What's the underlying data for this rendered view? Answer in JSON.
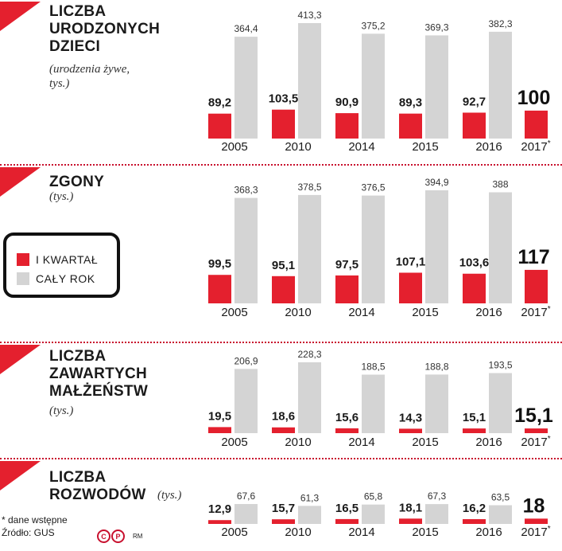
{
  "colors": {
    "q1": "#e4202e",
    "year": "#d4d4d4",
    "accent": "#c8102e"
  },
  "legend": {
    "q1_label": "I KWARTAŁ",
    "year_label": "CAŁY ROK"
  },
  "footnote": "* dane wstępne",
  "source": "Źródło: GUS",
  "logo": {
    "c": "C",
    "p": "P",
    "rm": "RM"
  },
  "years": [
    "2005",
    "2010",
    "2014",
    "2015",
    "2016",
    "2017*"
  ],
  "panels": [
    {
      "title_lines": [
        "LICZBA",
        "URODZONYCH",
        "DZIECI"
      ],
      "subtitle_lines": [
        "(urodzenia żywe,",
        "tys.)"
      ]
    },
    {
      "title_lines": [
        "ZGONY"
      ],
      "subtitle_lines": [
        "(tys.)"
      ]
    },
    {
      "title_lines": [
        "LICZBA",
        "ZAWARTYCH",
        "MAŁŻEŃSTW"
      ],
      "subtitle_lines": [
        "(tys.)"
      ]
    },
    {
      "title_lines": [
        "LICZBA",
        "ROZWODÓW"
      ],
      "subtitle_lines": [
        "(tys.)"
      ]
    }
  ],
  "chart_data": [
    {
      "type": "bar",
      "title": "LICZBA URODZONYCH DZIECI (urodzenia żywe, tys.)",
      "categories": [
        "2005",
        "2010",
        "2014",
        "2015",
        "2016",
        "2017*"
      ],
      "series": [
        {
          "name": "I KWARTAŁ",
          "values": [
            89.2,
            103.5,
            90.9,
            89.3,
            92.7,
            100
          ],
          "labels": [
            "89,2",
            "103,5",
            "90,9",
            "89,3",
            "92,7",
            "100"
          ]
        },
        {
          "name": "CAŁY ROK",
          "values": [
            364.4,
            413.3,
            375.2,
            369.3,
            382.3,
            null
          ],
          "labels": [
            "364,4",
            "413,3",
            "375,2",
            "369,3",
            "382,3",
            null
          ]
        }
      ]
    },
    {
      "type": "bar",
      "title": "ZGONY (tys.)",
      "categories": [
        "2005",
        "2010",
        "2014",
        "2015",
        "2016",
        "2017*"
      ],
      "series": [
        {
          "name": "I KWARTAŁ",
          "values": [
            99.5,
            95.1,
            97.5,
            107.1,
            103.6,
            117
          ],
          "labels": [
            "99,5",
            "95,1",
            "97,5",
            "107,1",
            "103,6",
            "117"
          ]
        },
        {
          "name": "CAŁY ROK",
          "values": [
            368.3,
            378.5,
            376.5,
            394.9,
            388,
            null
          ],
          "labels": [
            "368,3",
            "378,5",
            "376,5",
            "394,9",
            "388",
            null
          ]
        }
      ]
    },
    {
      "type": "bar",
      "title": "LICZBA ZAWARTYCH MAŁŻEŃSTW (tys.)",
      "categories": [
        "2005",
        "2010",
        "2014",
        "2015",
        "2016",
        "2017*"
      ],
      "series": [
        {
          "name": "I KWARTAŁ",
          "values": [
            19.5,
            18.6,
            15.6,
            14.3,
            15.1,
            15.1
          ],
          "labels": [
            "19,5",
            "18,6",
            "15,6",
            "14,3",
            "15,1",
            "15,1"
          ]
        },
        {
          "name": "CAŁY ROK",
          "values": [
            206.9,
            228.3,
            188.5,
            188.8,
            193.5,
            null
          ],
          "labels": [
            "206,9",
            "228,3",
            "188,5",
            "188,8",
            "193,5",
            null
          ]
        }
      ]
    },
    {
      "type": "bar",
      "title": "LICZBA ROZWODÓW (tys.)",
      "categories": [
        "2005",
        "2010",
        "2014",
        "2015",
        "2016",
        "2017*"
      ],
      "series": [
        {
          "name": "I KWARTAŁ",
          "values": [
            12.9,
            15.7,
            16.5,
            18.1,
            16.2,
            18
          ],
          "labels": [
            "12,9",
            "15,7",
            "16,5",
            "18,1",
            "16,2",
            "18"
          ]
        },
        {
          "name": "CAŁY ROK",
          "values": [
            67.6,
            61.3,
            65.8,
            67.3,
            63.5,
            null
          ],
          "labels": [
            "67,6",
            "61,3",
            "65,8",
            "67,3",
            "63,5",
            null
          ]
        }
      ]
    }
  ]
}
